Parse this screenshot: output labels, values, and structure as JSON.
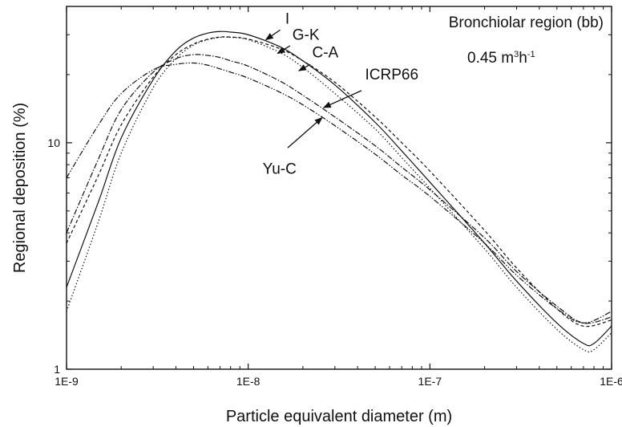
{
  "chart_data": {
    "type": "line",
    "xlabel": "Particle equivalent diameter (m)",
    "ylabel": "Regional deposition (%)",
    "x_scale": "log",
    "y_scale": "log",
    "xlim": [
      1e-09,
      1e-06
    ],
    "ylim": [
      1,
      40
    ],
    "x_ticks": [
      "1E-9",
      "1E-8",
      "1E-7",
      "1E-6"
    ],
    "y_ticks": [
      "1",
      "10"
    ],
    "grid": false,
    "annotations": {
      "region": "Bronchiolar region (bb)",
      "flow_value": "0.45 m",
      "flow_exp1": "3",
      "flow_mid": "h",
      "flow_exp2": "-1"
    },
    "series": [
      {
        "name": "I",
        "dash": "solid",
        "points": [
          [
            1e-09,
            2.3
          ],
          [
            1.5e-09,
            5.5
          ],
          [
            2e-09,
            10.5
          ],
          [
            3e-09,
            19
          ],
          [
            4e-09,
            25.5
          ],
          [
            5e-09,
            29
          ],
          [
            6e-09,
            30.5
          ],
          [
            7e-09,
            31
          ],
          [
            8e-09,
            30.8
          ],
          [
            1e-08,
            30
          ],
          [
            1.5e-08,
            26.5
          ],
          [
            2e-08,
            23
          ],
          [
            3e-08,
            18
          ],
          [
            5e-08,
            12.3
          ],
          [
            7e-08,
            9.2
          ],
          [
            1e-07,
            6.7
          ],
          [
            2e-07,
            3.6
          ],
          [
            3e-07,
            2.45
          ],
          [
            5e-07,
            1.6
          ],
          [
            7e-07,
            1.3
          ],
          [
            8e-07,
            1.3
          ],
          [
            1e-06,
            1.55
          ]
        ]
      },
      {
        "name": "G-K",
        "dash": "4 3",
        "points": [
          [
            1e-09,
            3.6
          ],
          [
            1.5e-09,
            7.2
          ],
          [
            2e-09,
            12
          ],
          [
            3e-09,
            19.5
          ],
          [
            4e-09,
            24.5
          ],
          [
            5e-09,
            27.3
          ],
          [
            6e-09,
            28.7
          ],
          [
            7e-09,
            29.3
          ],
          [
            8e-09,
            29.3
          ],
          [
            1e-08,
            28.7
          ],
          [
            1.5e-08,
            26
          ],
          [
            2e-08,
            23
          ],
          [
            3e-08,
            18.5
          ],
          [
            5e-08,
            13
          ],
          [
            7e-08,
            10
          ],
          [
            1e-07,
            7.5
          ],
          [
            2e-07,
            4.1
          ],
          [
            3e-07,
            2.8
          ],
          [
            5e-07,
            1.85
          ],
          [
            7e-07,
            1.55
          ],
          [
            1e-06,
            1.65
          ]
        ]
      },
      {
        "name": "C-A",
        "dash": "1.5 2.5",
        "points": [
          [
            1e-09,
            1.8
          ],
          [
            1.5e-09,
            4.5
          ],
          [
            2e-09,
            9
          ],
          [
            3e-09,
            17.5
          ],
          [
            4e-09,
            23.5
          ],
          [
            5e-09,
            27
          ],
          [
            6e-09,
            28.5
          ],
          [
            7e-09,
            29.2
          ],
          [
            8e-09,
            29.2
          ],
          [
            1e-08,
            28.5
          ],
          [
            1.5e-08,
            25
          ],
          [
            2e-08,
            21.5
          ],
          [
            3e-08,
            16.5
          ],
          [
            5e-08,
            11.5
          ],
          [
            7e-08,
            8.6
          ],
          [
            1e-07,
            6.3
          ],
          [
            2e-07,
            3.4
          ],
          [
            3e-07,
            2.3
          ],
          [
            5e-07,
            1.5
          ],
          [
            7e-07,
            1.22
          ],
          [
            8e-07,
            1.22
          ],
          [
            1e-06,
            1.45
          ]
        ]
      },
      {
        "name": "ICRP66",
        "dash": "7 2 1.5 2",
        "points": [
          [
            1e-09,
            4
          ],
          [
            1.5e-09,
            8.5
          ],
          [
            2e-09,
            14
          ],
          [
            3e-09,
            20.5
          ],
          [
            4e-09,
            23.5
          ],
          [
            5e-09,
            24.5
          ],
          [
            6e-09,
            24.3
          ],
          [
            7e-09,
            23.8
          ],
          [
            8e-09,
            23
          ],
          [
            1e-08,
            21.8
          ],
          [
            1.5e-08,
            18.7
          ],
          [
            2e-08,
            16.2
          ],
          [
            3e-08,
            13
          ],
          [
            5e-08,
            9.7
          ],
          [
            7e-08,
            7.8
          ],
          [
            1e-07,
            6.2
          ],
          [
            2e-07,
            3.8
          ],
          [
            3e-07,
            2.7
          ],
          [
            5e-07,
            1.9
          ],
          [
            7e-07,
            1.6
          ],
          [
            1e-06,
            1.7
          ]
        ]
      },
      {
        "name": "Yu-C",
        "dash": "7 2 1.5 2 1.5 2",
        "points": [
          [
            1e-09,
            7
          ],
          [
            1.5e-09,
            12
          ],
          [
            2e-09,
            16.5
          ],
          [
            3e-09,
            21
          ],
          [
            4e-09,
            22.2
          ],
          [
            5e-09,
            22.5
          ],
          [
            6e-09,
            22
          ],
          [
            7e-09,
            21.2
          ],
          [
            8e-09,
            20.5
          ],
          [
            1e-08,
            19.3
          ],
          [
            1.5e-08,
            16.7
          ],
          [
            2e-08,
            14.7
          ],
          [
            3e-08,
            11.9
          ],
          [
            5e-08,
            8.9
          ],
          [
            7e-08,
            7.2
          ],
          [
            1e-07,
            5.8
          ],
          [
            2e-07,
            3.6
          ],
          [
            3e-07,
            2.6
          ],
          [
            5e-07,
            1.85
          ],
          [
            7e-07,
            1.6
          ],
          [
            1e-06,
            1.8
          ]
        ]
      }
    ],
    "series_labels": [
      {
        "name": "I",
        "at": [
          1.6e-08,
          33.5
        ],
        "arrow_from": [
          1.5e-08,
          31.5
        ],
        "arrow_to": [
          1.25e-08,
          28.5
        ]
      },
      {
        "name": "G-K",
        "at": [
          1.75e-08,
          28.5
        ],
        "arrow_from": [
          1.7e-08,
          26.8
        ],
        "arrow_to": [
          1.45e-08,
          24.8
        ]
      },
      {
        "name": "C-A",
        "at": [
          2.25e-08,
          23.8
        ],
        "arrow_from": [
          2.2e-08,
          22.2
        ],
        "arrow_to": [
          1.9e-08,
          20.8
        ]
      },
      {
        "name": "ICRP66",
        "at": [
          4.4e-08,
          19
        ],
        "arrow_from": [
          4.2e-08,
          17
        ],
        "arrow_to": [
          2.6e-08,
          14.3
        ]
      },
      {
        "name": "Yu-C",
        "at": [
          1.2e-08,
          7.3
        ],
        "arrow_from": [
          1.65e-08,
          9.5
        ],
        "arrow_to": [
          2.55e-08,
          12.9
        ]
      }
    ]
  }
}
